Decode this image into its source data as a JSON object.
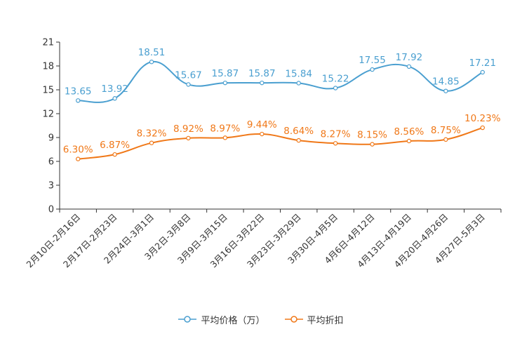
{
  "chart_data": {
    "type": "line",
    "categories": [
      "2月10日-2月16日",
      "2月17日-2月23日",
      "2月24日-3月1日",
      "3月2日-3月8日",
      "3月9日-3月15日",
      "3月16日-3月22日",
      "3月23日-3月29日",
      "3月30日-4月5日",
      "4月6日-4月12日",
      "4月13日-4月19日",
      "4月20日-4月26日",
      "4月27日-5月3日"
    ],
    "ylim": [
      0,
      21
    ],
    "yticks": [
      "0",
      "3",
      "6",
      "9",
      "12",
      "15",
      "18",
      "21"
    ],
    "series": [
      {
        "name": "平均价格（万）",
        "color": "#4a9fd0",
        "values": [
          13.65,
          13.92,
          18.51,
          15.67,
          15.87,
          15.87,
          15.84,
          15.22,
          17.55,
          17.92,
          14.85,
          17.21
        ],
        "labels": [
          "13.65",
          "13.92",
          "18.51",
          "15.67",
          "15.87",
          "15.87",
          "15.84",
          "15.22",
          "17.55",
          "17.92",
          "14.85",
          "17.21"
        ]
      },
      {
        "name": "平均折扣",
        "color": "#f07818",
        "values": [
          6.3,
          6.87,
          8.32,
          8.92,
          8.97,
          9.44,
          8.64,
          8.27,
          8.15,
          8.56,
          8.75,
          10.23
        ],
        "labels": [
          "6.30%",
          "6.87%",
          "8.32%",
          "8.92%",
          "8.97%",
          "9.44%",
          "8.64%",
          "8.27%",
          "8.15%",
          "8.56%",
          "8.75%",
          "10.23%"
        ]
      }
    ]
  }
}
